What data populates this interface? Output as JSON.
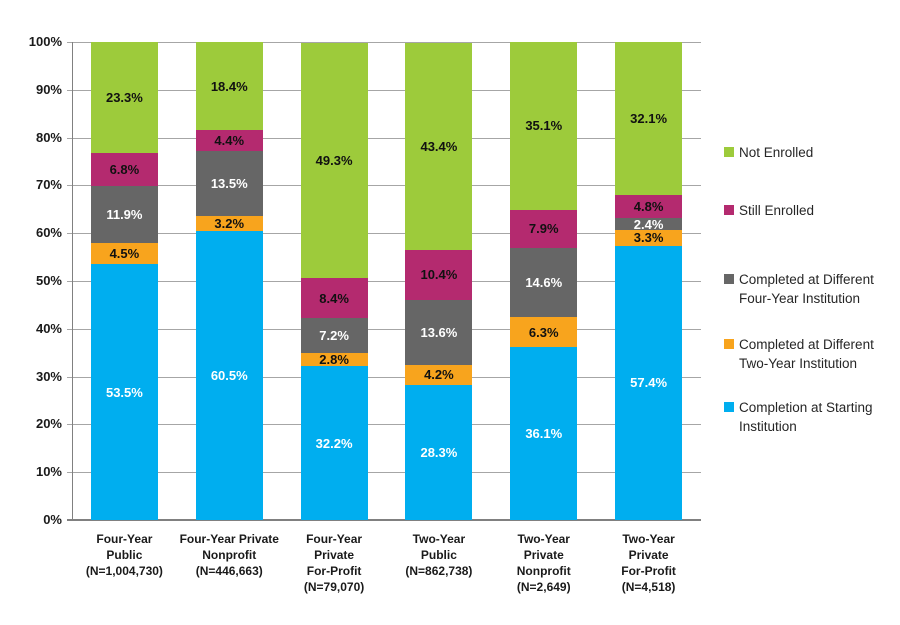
{
  "chart_data": {
    "type": "bar",
    "stacked": true,
    "title": "",
    "grid": true,
    "legend_position": "right",
    "y_axis": {
      "min": 0,
      "max": 100,
      "step": 10,
      "tick_labels": [
        "0%",
        "10%",
        "20%",
        "30%",
        "40%",
        "50%",
        "60%",
        "70%",
        "80%",
        "90%",
        "100%"
      ]
    },
    "categories": [
      [
        "Four-Year",
        "Public",
        "(N=1,004,730)"
      ],
      [
        "Four-Year Private",
        "Nonprofit",
        "(N=446,663)"
      ],
      [
        "Four-Year",
        "Private",
        "For-Profit",
        "(N=79,070)"
      ],
      [
        "Two-Year",
        "Public",
        "(N=862,738)"
      ],
      [
        "Two-Year",
        "Private",
        "Nonprofit",
        "(N=2,649)"
      ],
      [
        "Two-Year",
        "Private",
        "For-Profit",
        "(N=4,518)"
      ]
    ],
    "series": [
      {
        "name": "Completion at Starting Institution",
        "color": "#00AEEF",
        "label_color": "#ffffff",
        "values": [
          53.5,
          60.5,
          32.2,
          28.3,
          36.1,
          57.4
        ]
      },
      {
        "name": "Completed at Different Two-Year Institution",
        "color": "#F8A41D",
        "label_color": "#111111",
        "values": [
          4.5,
          3.2,
          2.8,
          4.2,
          6.3,
          3.3
        ]
      },
      {
        "name": "Completed at Different Four-Year Institution",
        "color": "#666666",
        "label_color": "#ffffff",
        "values": [
          11.9,
          13.5,
          7.2,
          13.6,
          14.6,
          2.4
        ]
      },
      {
        "name": "Still Enrolled",
        "color": "#B42A6F",
        "label_color": "#111111",
        "values": [
          6.8,
          4.4,
          8.4,
          10.4,
          7.9,
          4.8
        ]
      },
      {
        "name": "Not Enrolled",
        "color": "#9DCB3B",
        "label_color": "#111111",
        "values": [
          23.3,
          18.4,
          49.3,
          43.4,
          35.1,
          32.1
        ]
      }
    ],
    "legend": [
      {
        "lines": [
          "Not Enrolled"
        ],
        "color": "#9DCB3B"
      },
      {
        "lines": [
          "Still Enrolled"
        ],
        "color": "#B42A6F"
      },
      {
        "lines": [
          "Completed at Different",
          "Four-Year Institution"
        ],
        "color": "#666666"
      },
      {
        "lines": [
          "Completed at Different",
          "Two-Year Institution"
        ],
        "color": "#F8A41D"
      },
      {
        "lines": [
          "Completion at Starting",
          "Institution"
        ],
        "color": "#00AEEF"
      }
    ],
    "colors": {
      "gridline": "#a6a6a6",
      "axis": "#808080",
      "text": "#1a1a1a"
    }
  }
}
